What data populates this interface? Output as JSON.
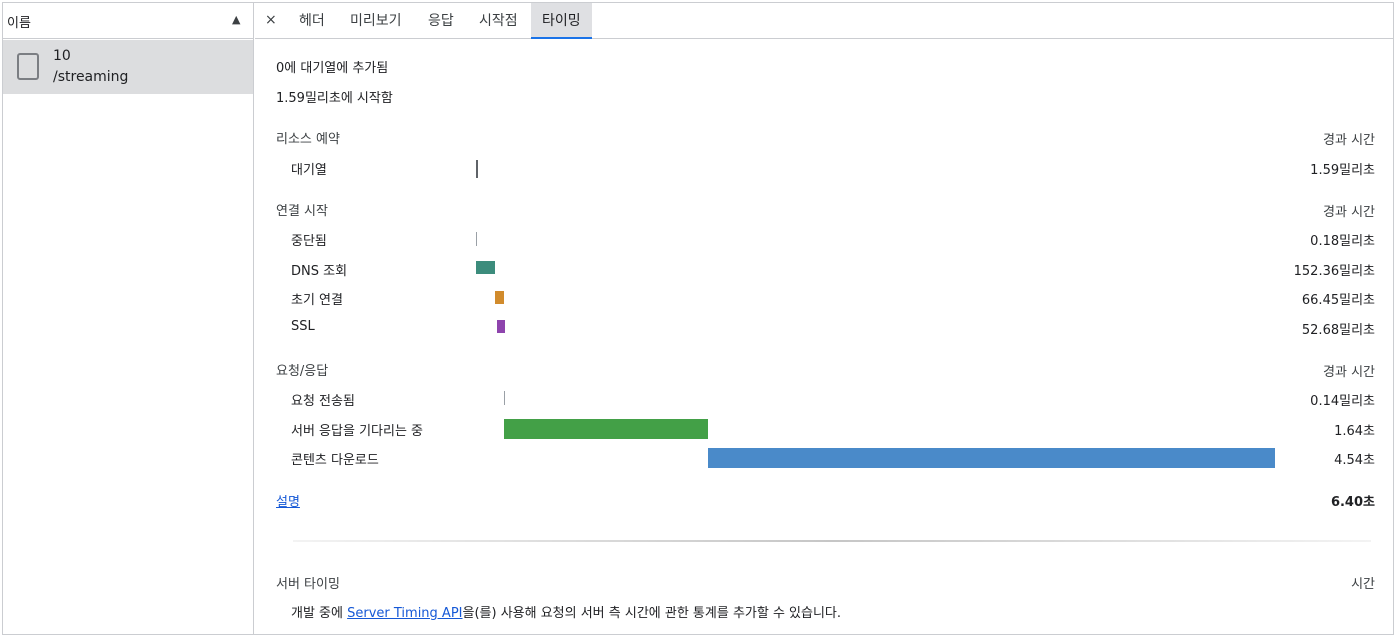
{
  "left": {
    "header": "이름",
    "sort_icon": "▲",
    "row": {
      "line1": "10",
      "line2": "/streaming"
    }
  },
  "tabs": {
    "close": "×",
    "items": [
      "헤더",
      "미리보기",
      "응답",
      "시작점",
      "타이밍"
    ],
    "active": "타이밍"
  },
  "info": {
    "queued": "0에 대기열에 추가됨",
    "started": "1.59밀리초에 시작함"
  },
  "sections": [
    {
      "title": "리소스 예약",
      "col": "경과 시간",
      "rows": [
        {
          "label": "대기열",
          "value": "1.59밀리초",
          "start_ms": 0,
          "dur_ms": 1.59,
          "color": "#5f6368"
        }
      ]
    },
    {
      "title": "연결 시작",
      "col": "경과 시간",
      "rows": [
        {
          "label": "중단됨",
          "value": "0.18밀리초",
          "start_ms": 1.59,
          "dur_ms": 0.18,
          "color": "#9aa0a6"
        },
        {
          "label": "DNS 조회",
          "value": "152.36밀리초",
          "start_ms": 1.77,
          "dur_ms": 152.36,
          "color": "#3c8c7c"
        },
        {
          "label": "초기 연결",
          "value": "66.45밀리초",
          "start_ms": 154.13,
          "dur_ms": 66.45,
          "color": "#d18b2c"
        },
        {
          "label": "SSL",
          "value": "52.68밀리초",
          "start_ms": 167.9,
          "dur_ms": 52.68,
          "color": "#8e44ad"
        }
      ]
    },
    {
      "title": "요청/응답",
      "col": "경과 시간",
      "rows": [
        {
          "label": "요청 전송됨",
          "value": "0.14밀리초",
          "start_ms": 220.58,
          "dur_ms": 0.14,
          "color": "#9aa0a6"
        },
        {
          "label": "서버 응답을 기다리는 중",
          "value": "1.64초",
          "start_ms": 220.72,
          "dur_ms": 1640,
          "color": "#43a047"
        },
        {
          "label": "콘텐츠 다운로드",
          "value": "4.54초",
          "start_ms": 1860.72,
          "dur_ms": 4540,
          "color": "#4a8ac9"
        }
      ]
    }
  ],
  "footer": {
    "explain": "설명",
    "total": "6.40초",
    "total_ms": 6400
  },
  "server": {
    "title": "서버 타이밍",
    "col": "시간",
    "desc_before": "개발 중에 ",
    "desc_link": "Server Timing API",
    "desc_after": "을(를) 사용해 요청의 서버 측 시간에 관한 통계를 추가할 수 있습니다."
  }
}
